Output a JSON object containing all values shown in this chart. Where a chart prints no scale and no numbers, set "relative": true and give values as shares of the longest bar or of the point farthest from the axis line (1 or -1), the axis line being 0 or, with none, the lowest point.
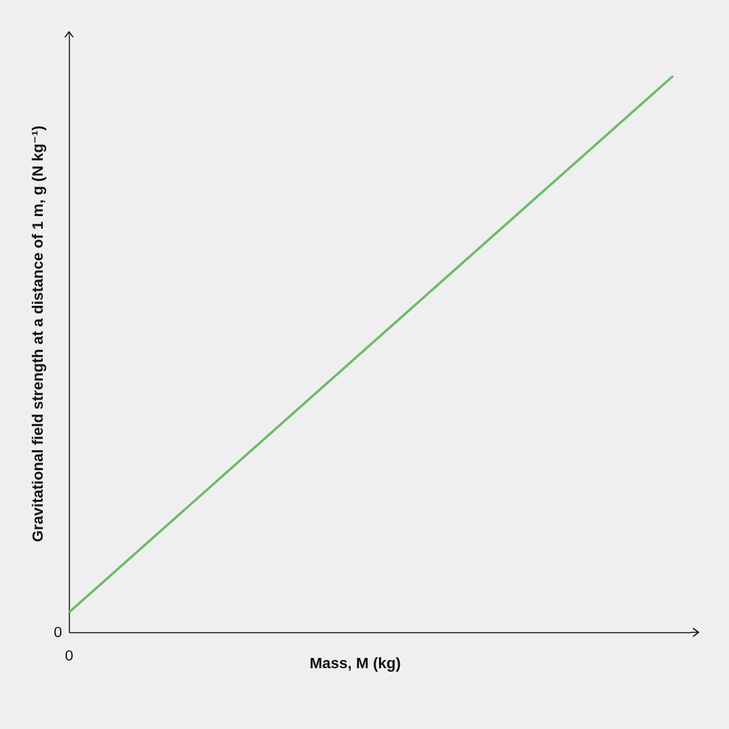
{
  "chart_data": {
    "type": "line",
    "xlabel": "Mass, M (kg)",
    "ylabel": "Gravitational field strength at a distance of 1 m, g (N kg⁻¹)",
    "categories": [
      null,
      null
    ],
    "values": [
      0.036,
      1
    ],
    "color": "#6dbb6a",
    "relative": true,
    "annotations": [
      "0",
      "0"
    ]
  }
}
